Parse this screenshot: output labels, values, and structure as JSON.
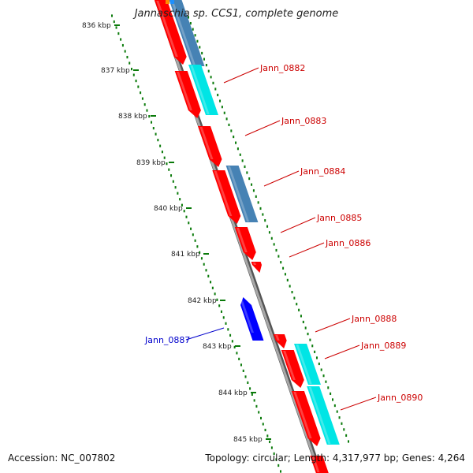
{
  "title": "Jannaschia sp. CCS1, complete genome",
  "footer": {
    "accession": "Accession: NC_007802",
    "summary": "Topology: circular; Length: 4,317,977 bp; Genes: 4,264"
  },
  "colors": {
    "backbone": "#8a8a8a",
    "cds": "#ff0000",
    "cds_alt": "#00e5e5",
    "trna": "#4682b4",
    "reverse_gene": "#0000ff",
    "tick": "#0a7a0a",
    "label_forward": "#cc0000",
    "label_reverse": "#0000cc"
  },
  "scale_labels": [
    "836 kbp",
    "837 kbp",
    "838 kbp",
    "839 kbp",
    "840 kbp",
    "841 kbp",
    "842 kbp",
    "843 kbp",
    "844 kbp",
    "845 kbp"
  ],
  "gene_labels": [
    {
      "text": "Jann_0882",
      "strand": "forward"
    },
    {
      "text": "Jann_0883",
      "strand": "forward"
    },
    {
      "text": "Jann_0884",
      "strand": "forward"
    },
    {
      "text": "Jann_0885",
      "strand": "forward"
    },
    {
      "text": "Jann_0886",
      "strand": "forward"
    },
    {
      "text": "Jann_0887",
      "strand": "reverse"
    },
    {
      "text": "Jann_0888",
      "strand": "forward"
    },
    {
      "text": "Jann_0889",
      "strand": "forward"
    },
    {
      "text": "Jann_0890",
      "strand": "forward"
    }
  ]
}
